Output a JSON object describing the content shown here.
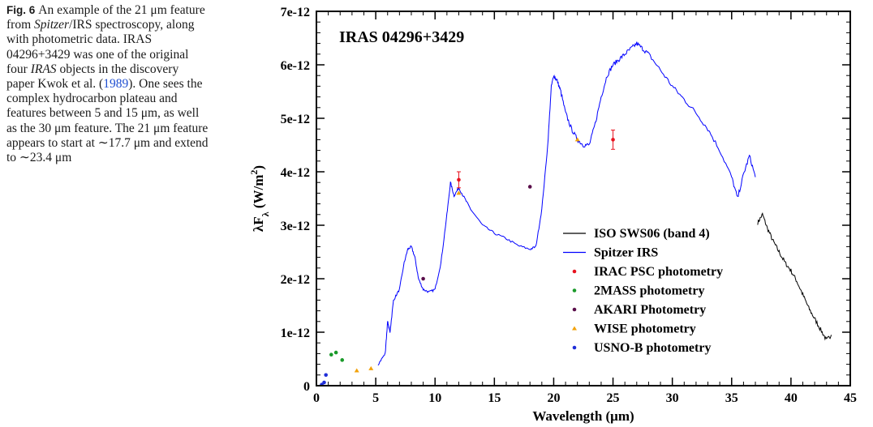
{
  "caption": {
    "fig_label": "Fig. 6",
    "segments": [
      {
        "t": "An example of the 21 μm feature from "
      },
      {
        "t": "Spitzer",
        "i": true
      },
      {
        "t": "/IRS spectroscopy, along with photometric data. IRAS 04296+3429 was one of the original four "
      },
      {
        "t": "IRAS",
        "i": true
      },
      {
        "t": " objects in the discovery paper Kwok et al. ("
      },
      {
        "t": "1989",
        "link": true
      },
      {
        "t": "). One sees the complex hydrocarbon plateau and features between 5 and 15 μm, as well as the 30 μm feature. The 21 μm feature appears to start at ∼17.7 μm and extend to ∼23.4 μm"
      }
    ]
  },
  "chart_data": {
    "type": "line",
    "title": "IRAS 04296+3429",
    "xlabel": "Wavelength (μm)",
    "ylabel_parts": {
      "pre": "λF",
      "sub": "λ",
      "mid": " (W/m",
      "sup": "2",
      "post": ")"
    },
    "xlim": [
      0,
      45
    ],
    "ylim": [
      0,
      7e-12
    ],
    "xticks": [
      0,
      5,
      10,
      15,
      20,
      25,
      30,
      35,
      40,
      45
    ],
    "xtick_labels": [
      "0",
      "5",
      "10",
      "15",
      "20",
      "25",
      "30",
      "35",
      "40",
      "45"
    ],
    "yticks": [
      0,
      1e-12,
      2e-12,
      3e-12,
      4e-12,
      5e-12,
      6e-12,
      7e-12
    ],
    "ytick_labels": [
      "0",
      "1e-12",
      "2e-12",
      "3e-12",
      "4e-12",
      "5e-12",
      "6e-12",
      "7e-12"
    ],
    "legend_position": "lower-right",
    "series": [
      {
        "name": "ISO SWS06 (band 4)",
        "kind": "line",
        "color": "#000000",
        "x": [
          37.2,
          37.6,
          38.0,
          38.5,
          39.0,
          39.5,
          40.0,
          40.5,
          41.0,
          41.5,
          42.0,
          42.5,
          43.0,
          43.4
        ],
        "y": [
          3.05e-12,
          3.2e-12,
          2.95e-12,
          2.7e-12,
          2.5e-12,
          2.3e-12,
          2.15e-12,
          1.95e-12,
          1.7e-12,
          1.45e-12,
          1.25e-12,
          1.05e-12,
          8.5e-13,
          9.5e-13
        ]
      },
      {
        "name": "Spitzer IRS",
        "kind": "line",
        "color": "#0000ff",
        "x": [
          5.2,
          5.8,
          6.0,
          6.2,
          6.5,
          7.0,
          7.4,
          7.7,
          8.0,
          8.3,
          8.6,
          9.0,
          9.5,
          10.0,
          10.5,
          11.0,
          11.3,
          11.6,
          12.0,
          12.5,
          13.0,
          14.0,
          15.0,
          16.0,
          17.0,
          18.0,
          18.5,
          19.0,
          19.5,
          19.8,
          20.0,
          20.3,
          20.6,
          21.0,
          21.5,
          22.0,
          22.5,
          23.0,
          23.5,
          24.0,
          24.5,
          25.0,
          25.5,
          26.0,
          26.5,
          27.0,
          27.5,
          28.0,
          29.0,
          30.0,
          31.0,
          32.0,
          33.0,
          34.0,
          35.0,
          35.5,
          36.0,
          36.5,
          37.0
        ],
        "y": [
          4e-13,
          6e-13,
          1.2e-12,
          1e-12,
          1.6e-12,
          1.8e-12,
          2.3e-12,
          2.55e-12,
          2.6e-12,
          2.4e-12,
          2e-12,
          1.8e-12,
          1.75e-12,
          1.8e-12,
          2.3e-12,
          3.2e-12,
          3.8e-12,
          3.55e-12,
          3.7e-12,
          3.5e-12,
          3.3e-12,
          3e-12,
          2.85e-12,
          2.75e-12,
          2.62e-12,
          2.55e-12,
          2.6e-12,
          3.3e-12,
          4.5e-12,
          5.6e-12,
          5.8e-12,
          5.7e-12,
          5.5e-12,
          5.1e-12,
          4.8e-12,
          4.6e-12,
          4.5e-12,
          4.5e-12,
          4.9e-12,
          5.4e-12,
          5.8e-12,
          6e-12,
          6.1e-12,
          6.2e-12,
          6.3e-12,
          6.4e-12,
          6.3e-12,
          6.2e-12,
          5.9e-12,
          5.6e-12,
          5.35e-12,
          5.1e-12,
          4.8e-12,
          4.4e-12,
          3.9e-12,
          3.5e-12,
          3.95e-12,
          4.3e-12,
          3.9e-12
        ]
      },
      {
        "name": "IRAC PSC photometry",
        "kind": "points",
        "marker": "circle",
        "color": "#e8121e",
        "x": [
          12.0,
          25.0
        ],
        "y": [
          3.85e-12,
          4.6e-12
        ],
        "err": [
          1.5e-13,
          1.8e-13
        ]
      },
      {
        "name": "2MASS photometry",
        "kind": "points",
        "marker": "circle",
        "color": "#1a9a2a",
        "x": [
          1.25,
          1.65,
          2.17
        ],
        "y": [
          5.8e-13,
          6.2e-13,
          4.8e-13
        ]
      },
      {
        "name": "AKARI Photometry",
        "kind": "points",
        "marker": "circle",
        "color": "#5a0e4a",
        "x": [
          9.0,
          18.0
        ],
        "y": [
          2e-12,
          3.72e-12
        ]
      },
      {
        "name": "WISE photometry",
        "kind": "points",
        "marker": "triangle",
        "color": "#f2a20a",
        "x": [
          3.4,
          4.6,
          12.0,
          22.0
        ],
        "y": [
          2.8e-13,
          3.2e-13,
          3.6e-12,
          4.6e-12
        ]
      },
      {
        "name": "USNO-B photometry",
        "kind": "points",
        "marker": "circle",
        "color": "#1f2ed8",
        "x": [
          0.45,
          0.65,
          0.8
        ],
        "y": [
          2e-14,
          6e-14,
          2e-13
        ]
      }
    ]
  }
}
